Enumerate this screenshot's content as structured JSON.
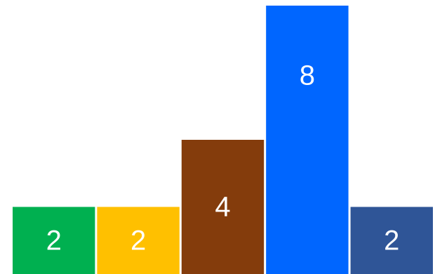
{
  "chart_data": {
    "type": "bar",
    "categories": [
      "",
      "",
      "",
      "",
      ""
    ],
    "values": [
      2,
      2,
      4,
      8,
      2
    ],
    "labels": [
      "2",
      "2",
      "4",
      "8",
      "2"
    ],
    "colors": [
      "#00b050",
      "#ffc000",
      "#843c0c",
      "#0066ff",
      "#2f5597"
    ],
    "ylim": [
      0,
      8
    ],
    "grid": false,
    "legend": "none",
    "title": "",
    "xlabel": "",
    "ylabel": ""
  }
}
